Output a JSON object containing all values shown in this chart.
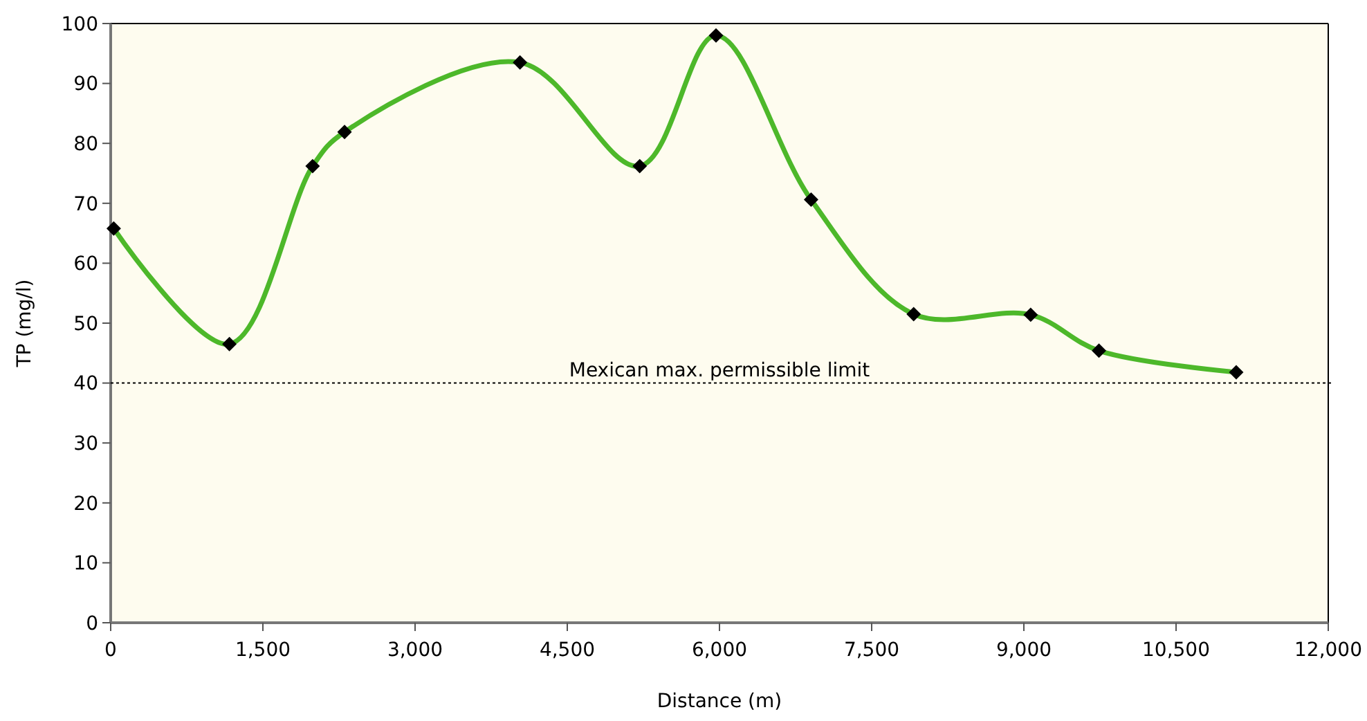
{
  "chart_data": {
    "type": "line",
    "xlabel": "Distance (m)",
    "ylabel": "TP (mg/l)",
    "xlim": [
      0,
      12000
    ],
    "xticks": [
      {
        "value": 0,
        "label": "0"
      },
      {
        "value": 1500,
        "label": "1,500"
      },
      {
        "value": 3000,
        "label": "3,000"
      },
      {
        "value": 4500,
        "label": "4,500"
      },
      {
        "value": 6000,
        "label": "6,000"
      },
      {
        "value": 7500,
        "label": "7,500"
      },
      {
        "value": 9000,
        "label": "9,000"
      },
      {
        "value": 10500,
        "label": "10,500"
      },
      {
        "value": 12000,
        "label": "12,000"
      }
    ],
    "ylim": [
      0,
      100
    ],
    "yticks": [
      0,
      10,
      20,
      30,
      40,
      50,
      60,
      70,
      80,
      90,
      100
    ],
    "series": [
      {
        "color": "#4db82a",
        "x": [
          30,
          1170,
          1990,
          2305,
          4034,
          5214,
          5966,
          6903,
          7914,
          9067,
          9740,
          11093
        ],
        "values": [
          65.8,
          46.5,
          76.2,
          81.9,
          93.5,
          76.2,
          98,
          70.6,
          51.5,
          51.4,
          45.4,
          41.8
        ]
      }
    ],
    "marker": "diamond",
    "grid": false,
    "ref_lines": [
      {
        "axis": "y",
        "value": 40,
        "label": "Mexican max. permissible limit",
        "color": "#000000",
        "line_style": "dotted"
      }
    ]
  }
}
